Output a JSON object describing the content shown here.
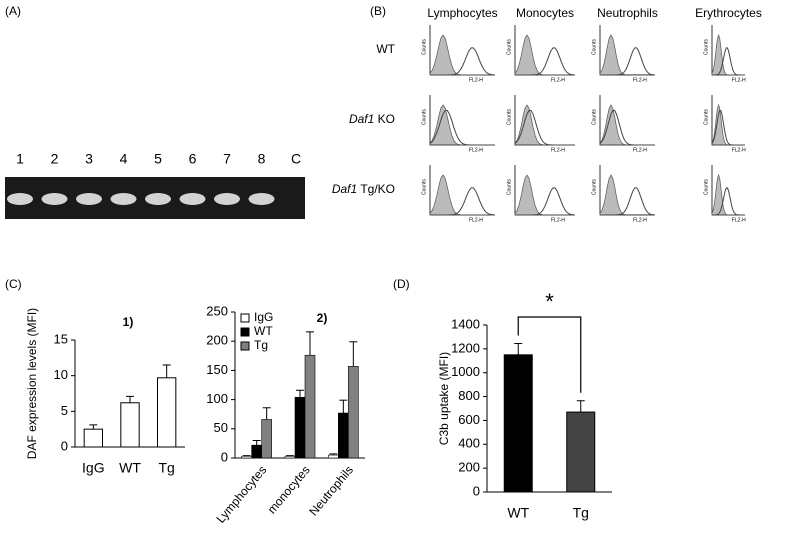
{
  "panels": {
    "a": {
      "label": "(A)",
      "lanes": [
        "1",
        "2",
        "3",
        "4",
        "5",
        "6",
        "7",
        "8",
        "C"
      ]
    },
    "b": {
      "label": "(B)",
      "columns": [
        "Lymphocytes",
        "Monocytes",
        "Neutrophils",
        "Erythrocytes"
      ],
      "rows": [
        [
          "WT"
        ],
        [
          "Daf1",
          "KO"
        ],
        [
          "Daf1",
          "Tg/KO"
        ]
      ],
      "histogram_x_label": "FL2-H",
      "histogram_y_label": "Counts"
    },
    "c": {
      "label": "(C)"
    },
    "d": {
      "label": "(D)"
    }
  },
  "chart_data": [
    {
      "type": "bar",
      "panel_label": "1)",
      "ylabel": "DAF expression levels (MFI)",
      "categories": [
        "IgG",
        "WT",
        "Tg"
      ],
      "values": [
        2.5,
        6.2,
        9.7
      ],
      "errors": [
        0.6,
        0.9,
        1.8
      ],
      "color": "#ffffff",
      "ylim": [
        0,
        15
      ],
      "yticks": [
        0,
        5,
        10,
        15
      ]
    },
    {
      "type": "grouped_bar",
      "panel_label": "2)",
      "categories": [
        "Lymphocytes",
        "monocytes",
        "Neutrophils"
      ],
      "series": [
        {
          "name": "IgG",
          "color": "#ffffff",
          "values": [
            3,
            3,
            5
          ],
          "errors": [
            1,
            1,
            2
          ]
        },
        {
          "name": "WT",
          "color": "#000000",
          "values": [
            22,
            104,
            77
          ],
          "errors": [
            8,
            12,
            22
          ]
        },
        {
          "name": "Tg",
          "color": "#808080",
          "values": [
            66,
            176,
            157
          ],
          "errors": [
            20,
            40,
            42
          ]
        }
      ],
      "ylim": [
        0,
        250
      ],
      "yticks": [
        0,
        50,
        100,
        150,
        200,
        250
      ],
      "legend": "upper left"
    },
    {
      "type": "bar",
      "ylabel": "C3b uptake (MFI)",
      "annotation": "*",
      "categories": [
        "WT",
        "Tg"
      ],
      "values": [
        1150,
        670
      ],
      "errors": [
        95,
        95
      ],
      "colors": [
        "#000000",
        "#444444"
      ],
      "ylim": [
        0,
        1400
      ],
      "yticks": [
        0,
        200,
        400,
        600,
        800,
        1000,
        1200,
        1400
      ]
    }
  ]
}
